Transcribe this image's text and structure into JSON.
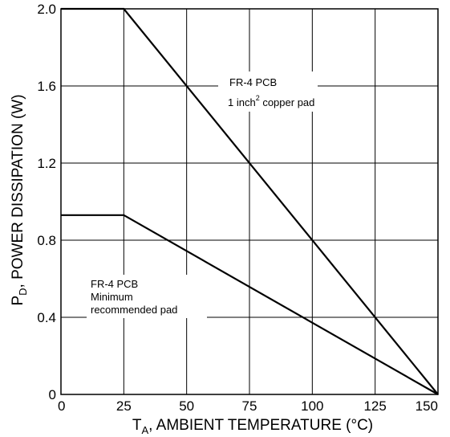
{
  "chart_data": {
    "type": "line",
    "xlabel": {
      "symbol": "T",
      "sub": "A",
      "rest": ", AMBIENT TEMPERATURE (°C)"
    },
    "ylabel": {
      "symbol": "P",
      "sub": "D",
      "rest": ", POWER DISSIPATION (W)"
    },
    "xlim": [
      0,
      150
    ],
    "ylim": [
      0,
      2.0
    ],
    "x_ticks": [
      {
        "value": 0,
        "label": "0"
      },
      {
        "value": 25,
        "label": "25"
      },
      {
        "value": 50,
        "label": "50"
      },
      {
        "value": 75,
        "label": "75"
      },
      {
        "value": 100,
        "label": "100"
      },
      {
        "value": 125,
        "label": "125"
      },
      {
        "value": 150,
        "label": "150"
      }
    ],
    "y_ticks": [
      {
        "value": 0,
        "label": "0"
      },
      {
        "value": 0.4,
        "label": "0.4"
      },
      {
        "value": 0.8,
        "label": "0.8"
      },
      {
        "value": 1.2,
        "label": "1.2"
      },
      {
        "value": 1.6,
        "label": "1.6"
      },
      {
        "value": 2.0,
        "label": "2.0"
      }
    ],
    "grid": true,
    "series": [
      {
        "x": [
          0,
          25,
          150
        ],
        "y": [
          2.0,
          2.0,
          0
        ]
      },
      {
        "x": [
          0,
          25,
          150
        ],
        "y": [
          0.93,
          0.93,
          0
        ]
      }
    ],
    "annotations": {
      "upper": {
        "line1": "FR-4 PCB",
        "line2_main": "1 inch",
        "line2_sup": "2",
        "line2_rest": " copper pad"
      },
      "lower": {
        "line1": "FR-4 PCB",
        "line2": "Minimum",
        "line3": "recommended pad"
      }
    },
    "colors": {
      "line": "#000000",
      "grid": "#000000",
      "background": "#ffffff"
    }
  }
}
